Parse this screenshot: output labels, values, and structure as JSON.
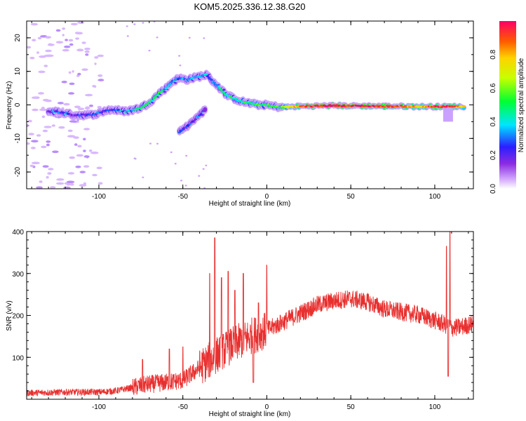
{
  "title": "KOM5.2025.336.12.38.G20",
  "chart_data": [
    {
      "type": "heatmap",
      "xlabel": "Height of straight line (km)",
      "ylabel": "Frequency (Hz)",
      "xlim": [
        -143,
        123
      ],
      "ylim": [
        -25,
        25
      ],
      "xticks": [
        -100,
        -50,
        0,
        50,
        100
      ],
      "xtick_labels": [
        "-100",
        "-50",
        "0",
        "50",
        "100"
      ],
      "yticks": [
        -20,
        -10,
        0,
        10,
        20
      ],
      "ytick_labels": [
        "-20",
        "-10",
        "0",
        "10",
        "20"
      ],
      "colorbar": {
        "label": "Normalized spectral amplitude",
        "range": [
          0,
          1
        ],
        "ticks": [
          0.0,
          0.2,
          0.4,
          0.6,
          0.8
        ],
        "tick_labels": [
          "0.0",
          "0.2",
          "0.4",
          "0.6",
          "0.8"
        ]
      },
      "trace": [
        {
          "x": -130,
          "f": -2,
          "a": 0.25
        },
        {
          "x": -125,
          "f": -2,
          "a": 0.3
        },
        {
          "x": -120,
          "f": -2.5,
          "a": 0.3
        },
        {
          "x": -115,
          "f": -3,
          "a": 0.2
        },
        {
          "x": -110,
          "f": -3,
          "a": 0.25
        },
        {
          "x": -105,
          "f": -3,
          "a": 0.2
        },
        {
          "x": -100,
          "f": -2.5,
          "a": 0.25
        },
        {
          "x": -95,
          "f": -1.5,
          "a": 0.25
        },
        {
          "x": -90,
          "f": -1.5,
          "a": 0.3
        },
        {
          "x": -85,
          "f": -2,
          "a": 0.35
        },
        {
          "x": -80,
          "f": -1.5,
          "a": 0.35
        },
        {
          "x": -76,
          "f": -1,
          "a": 0.45
        },
        {
          "x": -72,
          "f": 0,
          "a": 0.45
        },
        {
          "x": -68,
          "f": 1.5,
          "a": 0.45
        },
        {
          "x": -64,
          "f": 3.5,
          "a": 0.5
        },
        {
          "x": -60,
          "f": 5,
          "a": 0.3
        },
        {
          "x": -56,
          "f": 7,
          "a": 0.35
        },
        {
          "x": -52,
          "f": 8,
          "a": 0.35
        },
        {
          "x": -48,
          "f": 7.5,
          "a": 0.3
        },
        {
          "x": -44,
          "f": 8,
          "a": 0.3
        },
        {
          "x": -40,
          "f": 8.5,
          "a": 0.35
        },
        {
          "x": -36,
          "f": 9,
          "a": 0.35
        },
        {
          "x": -32,
          "f": 7,
          "a": 0.3
        },
        {
          "x": -28,
          "f": 5,
          "a": 0.4
        },
        {
          "x": -24,
          "f": 3,
          "a": 0.45
        },
        {
          "x": -20,
          "f": 2,
          "a": 0.45
        },
        {
          "x": -15,
          "f": 1,
          "a": 0.45
        },
        {
          "x": -10,
          "f": 0.5,
          "a": 0.5
        },
        {
          "x": -5,
          "f": 0,
          "a": 0.55
        },
        {
          "x": 0,
          "f": 0,
          "a": 0.5
        },
        {
          "x": 5,
          "f": -0.5,
          "a": 0.5
        },
        {
          "x": 10,
          "f": -0.7,
          "a": 0.6
        },
        {
          "x": 20,
          "f": -0.4,
          "a": 0.85
        },
        {
          "x": 30,
          "f": -0.3,
          "a": 0.95
        },
        {
          "x": 40,
          "f": -0.2,
          "a": 1.0
        },
        {
          "x": 50,
          "f": -0.3,
          "a": 0.95
        },
        {
          "x": 60,
          "f": -0.3,
          "a": 0.95
        },
        {
          "x": 70,
          "f": -0.4,
          "a": 0.9
        },
        {
          "x": 80,
          "f": -0.4,
          "a": 0.9
        },
        {
          "x": 90,
          "f": -0.5,
          "a": 0.8
        },
        {
          "x": 100,
          "f": -0.5,
          "a": 0.9
        },
        {
          "x": 110,
          "f": -0.5,
          "a": 0.95
        },
        {
          "x": 118,
          "f": -0.5,
          "a": 0.7
        }
      ],
      "branch": [
        {
          "x": -52,
          "f": -8,
          "a": 0.25
        },
        {
          "x": -48,
          "f": -6.5,
          "a": 0.25
        },
        {
          "x": -44,
          "f": -5,
          "a": 0.25
        },
        {
          "x": -40,
          "f": -3,
          "a": 0.25
        },
        {
          "x": -36,
          "f": -1,
          "a": 0.2
        }
      ]
    },
    {
      "type": "line",
      "xlabel": "Height of straight line (km)",
      "ylabel": "SNR (v/v)",
      "xlim": [
        -143,
        123
      ],
      "ylim": [
        0,
        400
      ],
      "xticks": [
        -100,
        -50,
        0,
        50,
        100
      ],
      "xtick_labels": [
        "-100",
        "-50",
        "0",
        "50",
        "100"
      ],
      "yticks": [
        100,
        200,
        300,
        400
      ],
      "ytick_labels": [
        "100",
        "200",
        "300",
        "400"
      ],
      "color": "#e8302f",
      "envelope": [
        {
          "x": -143,
          "y": 15
        },
        {
          "x": -120,
          "y": 17
        },
        {
          "x": -100,
          "y": 17
        },
        {
          "x": -90,
          "y": 20
        },
        {
          "x": -80,
          "y": 28
        },
        {
          "x": -72,
          "y": 35
        },
        {
          "x": -60,
          "y": 40
        },
        {
          "x": -50,
          "y": 45
        },
        {
          "x": -40,
          "y": 75
        },
        {
          "x": -30,
          "y": 105
        },
        {
          "x": -20,
          "y": 130
        },
        {
          "x": -10,
          "y": 150
        },
        {
          "x": 0,
          "y": 165
        },
        {
          "x": 10,
          "y": 185
        },
        {
          "x": 20,
          "y": 205
        },
        {
          "x": 30,
          "y": 225
        },
        {
          "x": 40,
          "y": 235
        },
        {
          "x": 50,
          "y": 240
        },
        {
          "x": 60,
          "y": 232
        },
        {
          "x": 70,
          "y": 215
        },
        {
          "x": 80,
          "y": 208
        },
        {
          "x": 90,
          "y": 202
        },
        {
          "x": 100,
          "y": 188
        },
        {
          "x": 105,
          "y": 180
        },
        {
          "x": 110,
          "y": 170
        },
        {
          "x": 115,
          "y": 172
        },
        {
          "x": 123,
          "y": 180
        }
      ],
      "spikes": [
        {
          "x": -74,
          "y": 95
        },
        {
          "x": -58,
          "y": 120
        },
        {
          "x": -50,
          "y": 125
        },
        {
          "x": -34,
          "y": 300
        },
        {
          "x": -31,
          "y": 385
        },
        {
          "x": -27,
          "y": 290
        },
        {
          "x": -23,
          "y": 305
        },
        {
          "x": -19,
          "y": 260
        },
        {
          "x": -14,
          "y": 300
        },
        {
          "x": -8,
          "y": 305
        },
        {
          "x": -5,
          "y": 230
        },
        {
          "x": 0,
          "y": 320
        },
        {
          "x": 107,
          "y": 365
        },
        {
          "x": 109,
          "y": 400
        }
      ],
      "dips": [
        {
          "x": -8,
          "y": 40
        },
        {
          "x": 108,
          "y": 55
        }
      ]
    }
  ]
}
